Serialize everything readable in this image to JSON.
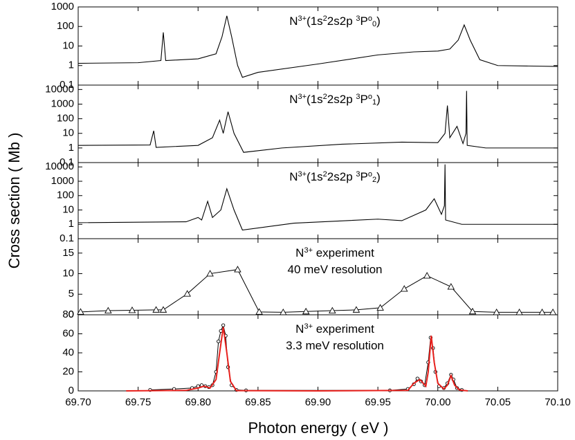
{
  "chart_data": [
    {
      "type": "line",
      "log_y": true,
      "ylim": [
        0.1,
        1000
      ],
      "yticks": [
        0.1,
        1,
        10,
        100,
        1000
      ],
      "annotation": [
        [
          {
            "text": "N",
            "pos": "base"
          },
          {
            "text": "3+",
            "pos": "sup"
          },
          {
            "text": "(1s",
            "pos": "base"
          },
          {
            "text": "2",
            "pos": "sup"
          },
          {
            "text": "2s2p ",
            "pos": "base"
          },
          {
            "text": "3",
            "pos": "sup"
          },
          {
            "text": "P",
            "pos": "base"
          },
          {
            "text": "o",
            "pos": "sup"
          },
          {
            "text": "0",
            "pos": "sub"
          },
          {
            "text": ")",
            "pos": "base"
          }
        ]
      ],
      "series": [
        {
          "color": "#000000",
          "x": [
            69.7,
            69.75,
            69.769,
            69.771,
            69.773,
            69.8,
            69.815,
            69.82,
            69.824,
            69.828,
            69.833,
            69.837,
            69.85,
            69.9,
            69.95,
            69.98,
            70.0,
            70.01,
            70.017,
            70.022,
            70.027,
            70.035,
            70.05,
            70.1
          ],
          "values": [
            1.3,
            1.4,
            1.8,
            50,
            1.8,
            2.2,
            4,
            30,
            350,
            30,
            1,
            0.25,
            0.45,
            1.2,
            3.5,
            5,
            5.5,
            7,
            20,
            120,
            20,
            2,
            1,
            0.9
          ]
        }
      ]
    },
    {
      "type": "line",
      "log_y": true,
      "ylim": [
        0.1,
        20000
      ],
      "yticks": [
        0.1,
        1,
        10,
        100,
        1000,
        10000
      ],
      "annotation": [
        [
          {
            "text": "N",
            "pos": "base"
          },
          {
            "text": "3+",
            "pos": "sup"
          },
          {
            "text": "(1s",
            "pos": "base"
          },
          {
            "text": "2",
            "pos": "sup"
          },
          {
            "text": "2s2p ",
            "pos": "base"
          },
          {
            "text": "3",
            "pos": "sup"
          },
          {
            "text": "P",
            "pos": "base"
          },
          {
            "text": "o",
            "pos": "sup"
          },
          {
            "text": "1",
            "pos": "sub"
          },
          {
            "text": ")",
            "pos": "base"
          }
        ]
      ],
      "series": [
        {
          "color": "#000000",
          "x": [
            69.7,
            69.76,
            69.763,
            69.765,
            69.8,
            69.812,
            69.818,
            69.821,
            69.825,
            69.83,
            69.838,
            69.87,
            69.92,
            69.97,
            70.0,
            70.006,
            70.008,
            70.01,
            70.016,
            70.021,
            70.0235,
            70.024,
            70.0245,
            70.04,
            70.1
          ],
          "values": [
            1.5,
            1.6,
            15,
            1.1,
            1.5,
            5,
            80,
            10,
            300,
            10,
            0.5,
            1,
            1.8,
            2.5,
            2.3,
            10,
            800,
            5,
            30,
            2,
            10,
            8000,
            1.5,
            1,
            1
          ]
        }
      ]
    },
    {
      "type": "line",
      "log_y": true,
      "ylim": [
        0.1,
        20000
      ],
      "yticks": [
        0.1,
        1,
        10,
        100,
        1000,
        10000
      ],
      "ylabel": "Cross section  ( Mb )",
      "annotation": [
        [
          {
            "text": "N",
            "pos": "base"
          },
          {
            "text": "3+",
            "pos": "sup"
          },
          {
            "text": "(1s",
            "pos": "base"
          },
          {
            "text": "2",
            "pos": "sup"
          },
          {
            "text": "2s2p ",
            "pos": "base"
          },
          {
            "text": "3",
            "pos": "sup"
          },
          {
            "text": "P",
            "pos": "base"
          },
          {
            "text": "o",
            "pos": "sup"
          },
          {
            "text": "2",
            "pos": "sub"
          },
          {
            "text": ")",
            "pos": "base"
          }
        ]
      ],
      "series": [
        {
          "color": "#000000",
          "x": [
            69.7,
            69.79,
            69.8,
            69.803,
            69.808,
            69.812,
            69.819,
            69.824,
            69.83,
            69.837,
            69.88,
            69.95,
            69.97,
            69.99,
            69.997,
            70.003,
            70.0055,
            70.006,
            70.0065,
            70.02,
            70.1
          ],
          "values": [
            1.3,
            1.5,
            3,
            2,
            40,
            3,
            10,
            300,
            10,
            0.4,
            1.2,
            2.3,
            1.8,
            10,
            60,
            5,
            20,
            15000,
            2,
            1,
            1
          ]
        }
      ]
    },
    {
      "type": "line",
      "log_y": false,
      "ylim": [
        0,
        18.5
      ],
      "yticks": [
        0,
        5,
        10,
        15
      ],
      "annotation": [
        [
          {
            "text": "N",
            "pos": "base"
          },
          {
            "text": "3+",
            "pos": "sup"
          },
          {
            "text": " experiment",
            "pos": "base"
          }
        ],
        [
          {
            "text": "40 meV resolution",
            "pos": "base"
          }
        ]
      ],
      "series": [
        {
          "color": "#000000",
          "marker": "triangle",
          "x": [
            69.702,
            69.725,
            69.745,
            69.765,
            69.771,
            69.791,
            69.81,
            69.833,
            69.851,
            69.871,
            69.89,
            69.912,
            69.932,
            69.952,
            69.972,
            69.991,
            70.011,
            70.029,
            70.049,
            70.068,
            70.087,
            70.096
          ],
          "values": [
            0.7,
            1.0,
            1.1,
            1.2,
            1.2,
            5.1,
            10,
            11,
            0.7,
            0.6,
            0.8,
            1.0,
            1.2,
            1.7,
            6.3,
            9.5,
            6.8,
            0.8,
            0.6,
            0.6,
            0.6,
            0.6
          ]
        }
      ]
    },
    {
      "type": "line",
      "log_y": false,
      "ylim": [
        0,
        80
      ],
      "yticks": [
        0,
        20,
        40,
        60,
        80
      ],
      "xlim": [
        69.7,
        70.1
      ],
      "xlabel": "Photon energy  ( eV )",
      "xticks": [
        {
          "value": 69.7,
          "label": "69.70"
        },
        {
          "value": 69.75,
          "label": "69.75"
        },
        {
          "value": 69.8,
          "label": "69.80"
        },
        {
          "value": 69.85,
          "label": "69.85"
        },
        {
          "value": 69.9,
          "label": "69.90"
        },
        {
          "value": 69.95,
          "label": "69.95"
        },
        {
          "value": 70.0,
          "label": "70.00"
        },
        {
          "value": 70.05,
          "label": "70.05"
        },
        {
          "value": 70.1,
          "label": "70.10"
        }
      ],
      "annotation": [
        [
          {
            "text": "N",
            "pos": "base"
          },
          {
            "text": "3+",
            "pos": "sup"
          },
          {
            "text": " experiment",
            "pos": "base"
          }
        ],
        [
          {
            "text": "3.3 meV resolution",
            "pos": "base"
          }
        ]
      ],
      "series": [
        {
          "color": "#000000",
          "marker": "circle",
          "x": [
            69.76,
            69.78,
            69.795,
            69.8,
            69.803,
            69.806,
            69.809,
            69.812,
            69.815,
            69.817,
            69.819,
            69.821,
            69.823,
            69.825,
            69.828,
            69.832,
            69.84,
            69.96,
            69.975,
            69.98,
            69.983,
            69.986,
            69.989,
            69.992,
            69.994,
            69.996,
            69.998,
            70.001,
            70.005,
            70.008,
            70.011,
            70.013,
            70.016,
            70.02
          ],
          "values": [
            1,
            2,
            3,
            5,
            6,
            5,
            4,
            6,
            20,
            52,
            63,
            69,
            58,
            25,
            6,
            1,
            0.5,
            0.5,
            2,
            7,
            13,
            10,
            6,
            30,
            56,
            45,
            20,
            5,
            3,
            8,
            17,
            12,
            3,
            1
          ]
        },
        {
          "color": "#e8201c",
          "x": [
            69.74,
            69.79,
            69.8,
            69.805,
            69.81,
            69.815,
            69.818,
            69.821,
            69.824,
            69.827,
            69.832,
            69.9,
            69.975,
            69.98,
            69.985,
            69.99,
            69.992,
            69.9945,
            69.997,
            70.0,
            70.005,
            70.008,
            70.011,
            70.014,
            70.018,
            70.025
          ],
          "values": [
            0,
            0.5,
            3,
            5,
            3,
            12,
            40,
            67,
            40,
            10,
            0.3,
            0,
            0.5,
            8,
            12,
            5,
            20,
            58,
            30,
            8,
            2,
            6,
            16,
            6,
            1,
            0
          ]
        }
      ]
    }
  ]
}
